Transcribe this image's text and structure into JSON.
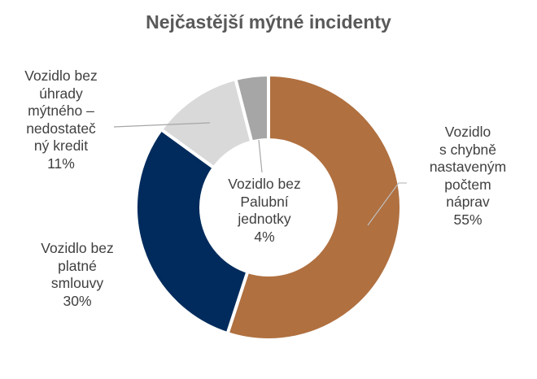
{
  "title": "Nejčastější mýtné incidenty",
  "chart_data": {
    "type": "pie",
    "subtype": "donut",
    "title": "Nejčastější mýtné incidenty",
    "categories": [
      "Vozidlo s chybně nastaveným počtem náprav",
      "Vozidlo bez platné smlouvy",
      "Vozidlo bez úhrady mýtného – nedostatečný kredit",
      "Vozidlo bez Palubní jednotky"
    ],
    "values": [
      55,
      30,
      11,
      4
    ],
    "unit": "%",
    "colors": [
      "#B07040",
      "#002B5C",
      "#D9D9D9",
      "#A6A6A6"
    ],
    "legend": "none (data labels)"
  },
  "labels": {
    "axles": {
      "lines": [
        "Vozidlo",
        "s chybně",
        "nastaveným",
        "počtem",
        "náprav"
      ],
      "pct": "55%"
    },
    "contract": {
      "lines": [
        "Vozidlo bez",
        "platné",
        "smlouvy"
      ],
      "pct": "30%"
    },
    "credit": {
      "lines": [
        "Vozidlo bez",
        "úhrady",
        "mýtného –",
        "nedostateč",
        "ný kredit"
      ],
      "pct": "11%"
    },
    "obu": {
      "lines": [
        "Vozidlo bez",
        "Palubní",
        "jednotky"
      ],
      "pct": "4%"
    }
  }
}
